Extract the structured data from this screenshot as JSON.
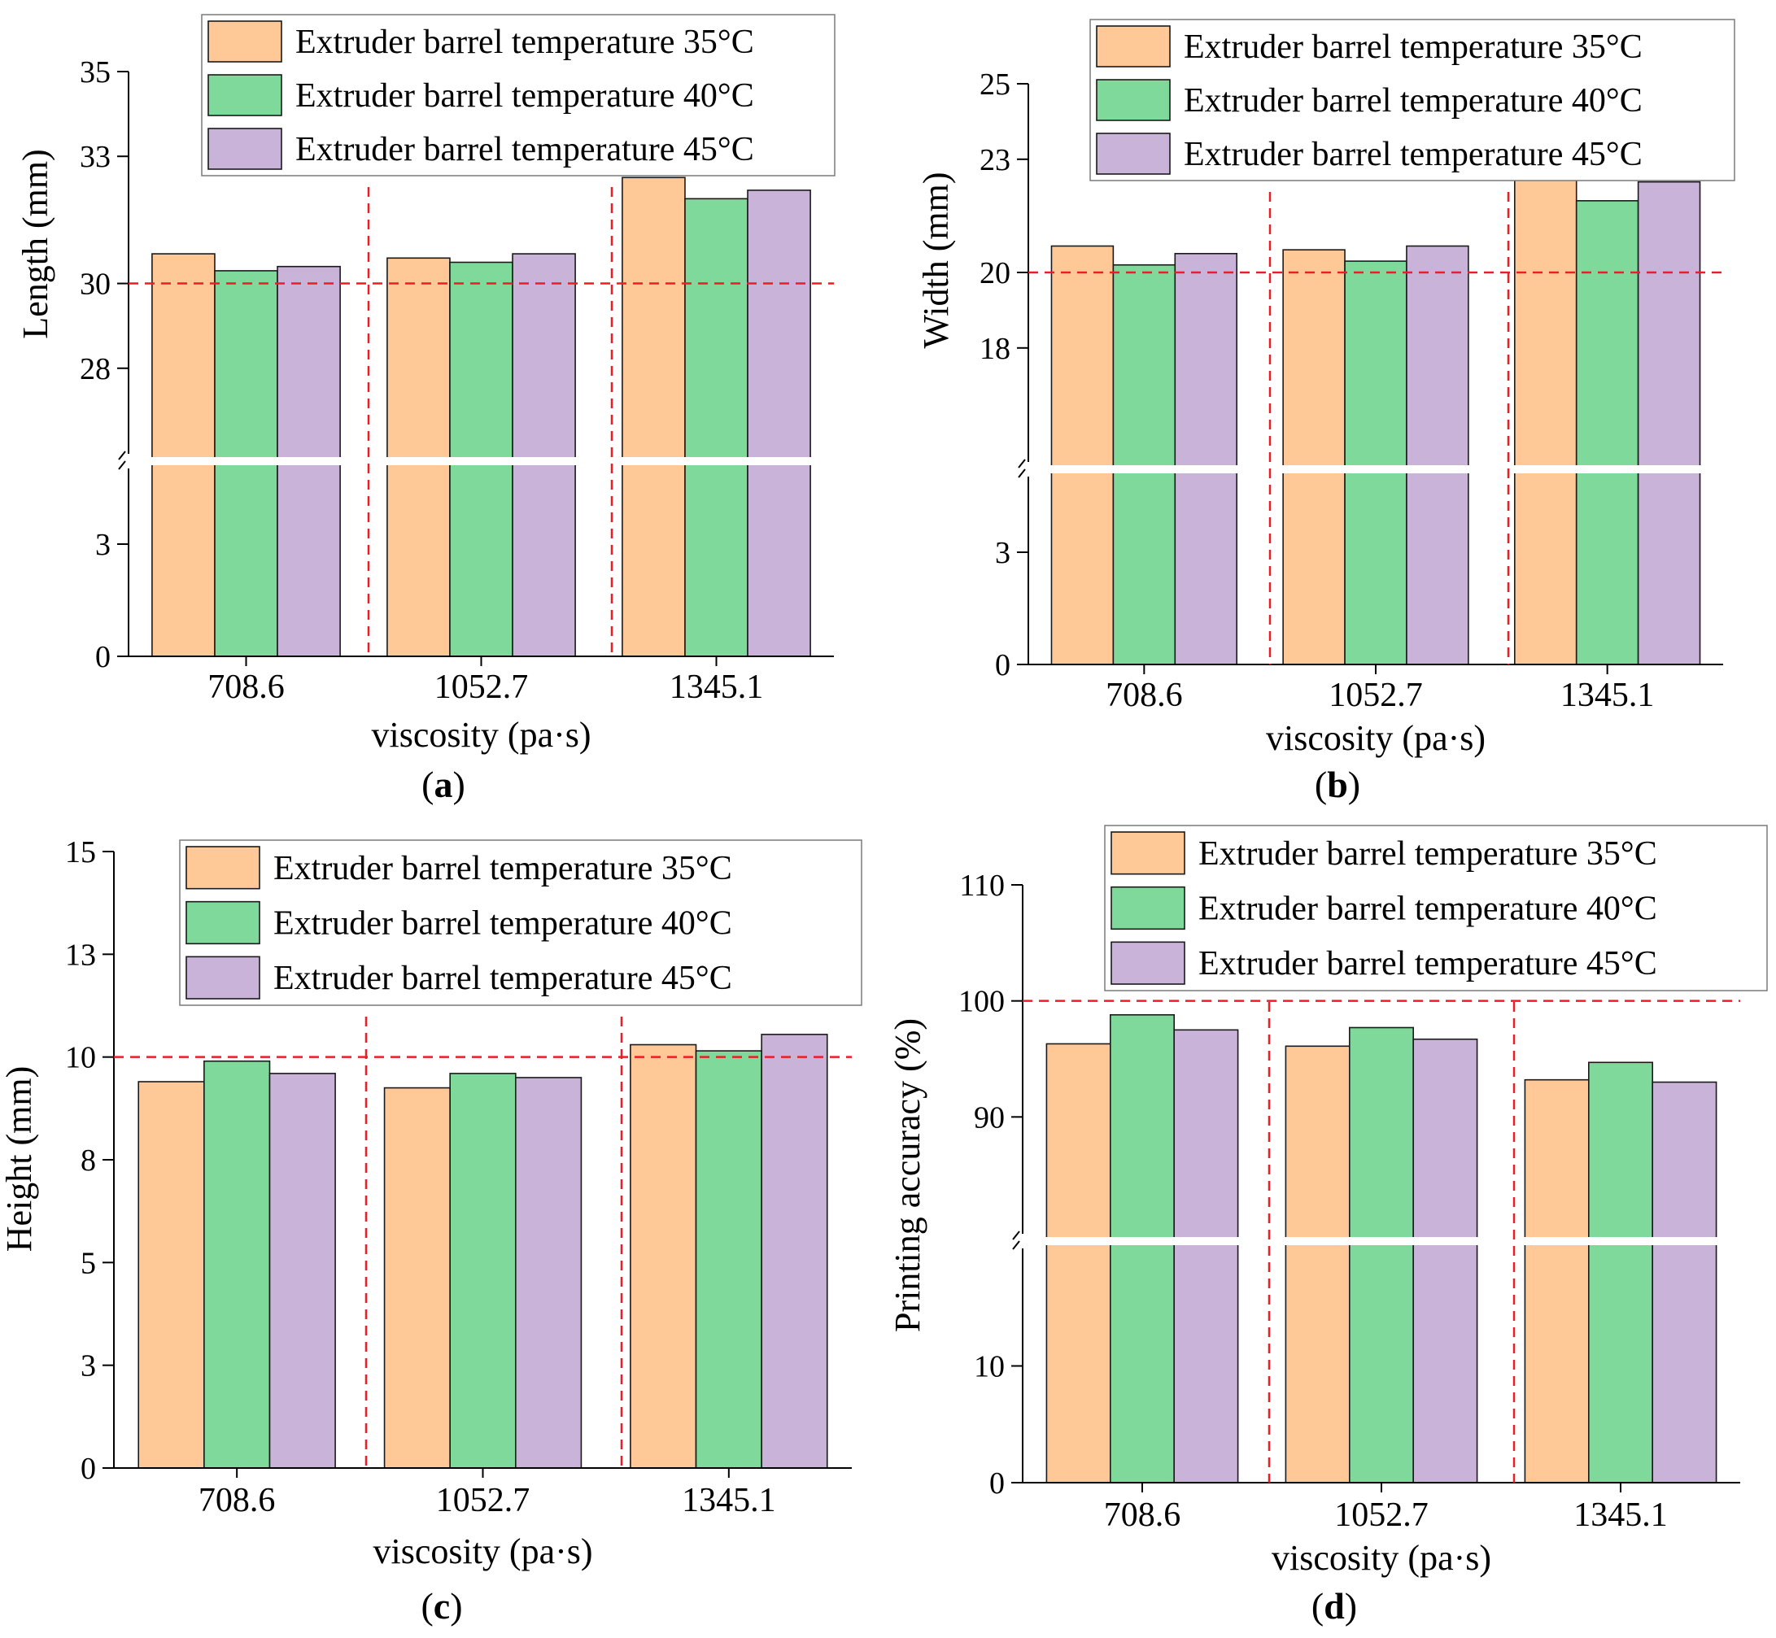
{
  "figure": {
    "colors": {
      "s35": "#FFC896",
      "s40": "#7ED99B",
      "s45": "#C9B3D9",
      "reference": "#EE1C24",
      "bar_border": "#1a1a1a"
    },
    "series_names": [
      "Extruder barrel temperature 35°C",
      "Extruder barrel temperature 40°C",
      "Extruder barrel temperature 45°C"
    ],
    "categories": [
      "708.6",
      "1052.7",
      "1345.1"
    ]
  },
  "chart_data": [
    {
      "id": "a",
      "type": "bar",
      "panel_label": "a",
      "xlabel": "viscosity (pa·s)",
      "ylabel": "Length (mm)",
      "categories": [
        "708.6",
        "1052.7",
        "1345.1"
      ],
      "series": [
        {
          "name": "Extruder barrel temperature 35°C",
          "values": [
            30.7,
            30.6,
            32.5
          ]
        },
        {
          "name": "Extruder barrel temperature 40°C",
          "values": [
            30.3,
            30.5,
            32.0
          ]
        },
        {
          "name": "Extruder barrel temperature 45°C",
          "values": [
            30.4,
            30.7,
            32.2
          ]
        }
      ],
      "reference_value": 30,
      "broken_axis": true,
      "lower_range": [
        0,
        5
      ],
      "upper_range": [
        26,
        35
      ],
      "ticks_lower": [
        {
          "v": 0,
          "label": "0"
        },
        {
          "v": 3,
          "label": "3"
        }
      ],
      "ticks_upper": [
        {
          "v": 28,
          "label": "28"
        },
        {
          "v": 30,
          "label": "30"
        },
        {
          "v": 33,
          "label": "33"
        },
        {
          "v": 35,
          "label": "35"
        }
      ]
    },
    {
      "id": "b",
      "type": "bar",
      "panel_label": "b",
      "xlabel": "viscosity (pa·s)",
      "ylabel": "Width (mm)",
      "categories": [
        "708.6",
        "1052.7",
        "1345.1"
      ],
      "series": [
        {
          "name": "Extruder barrel temperature 35°C",
          "values": [
            20.7,
            20.6,
            22.9
          ]
        },
        {
          "name": "Extruder barrel temperature 40°C",
          "values": [
            20.2,
            20.3,
            21.9
          ]
        },
        {
          "name": "Extruder barrel temperature 45°C",
          "values": [
            20.5,
            20.7,
            22.4
          ]
        }
      ],
      "reference_value": 20,
      "broken_axis": true,
      "lower_range": [
        0,
        5
      ],
      "upper_range": [
        15,
        25
      ],
      "ticks_lower": [
        {
          "v": 0,
          "label": "0"
        },
        {
          "v": 3,
          "label": "3"
        }
      ],
      "ticks_upper": [
        {
          "v": 18,
          "label": "18"
        },
        {
          "v": 20,
          "label": "20"
        },
        {
          "v": 23,
          "label": "23"
        },
        {
          "v": 25,
          "label": "25"
        }
      ]
    },
    {
      "id": "c",
      "type": "bar",
      "panel_label": "c",
      "xlabel": "viscosity (pa·s)",
      "ylabel": "Height (mm)",
      "categories": [
        "708.6",
        "1052.7",
        "1345.1"
      ],
      "series": [
        {
          "name": "Extruder barrel temperature 35°C",
          "values": [
            9.4,
            9.25,
            10.3
          ]
        },
        {
          "name": "Extruder barrel temperature 40°C",
          "values": [
            9.9,
            9.6,
            10.15
          ]
        },
        {
          "name": "Extruder barrel temperature 45°C",
          "values": [
            9.6,
            9.5,
            10.55
          ]
        }
      ],
      "reference_value": 10,
      "broken_axis": false,
      "ylim": [
        0,
        15
      ],
      "ticks": [
        {
          "v": 0,
          "label": "0"
        },
        {
          "v": 2.5,
          "label": "3"
        },
        {
          "v": 5,
          "label": "5"
        },
        {
          "v": 7.5,
          "label": "8"
        },
        {
          "v": 10,
          "label": "10"
        },
        {
          "v": 12.5,
          "label": "13"
        },
        {
          "v": 15,
          "label": "15"
        }
      ]
    },
    {
      "id": "d",
      "type": "bar",
      "panel_label": "d",
      "xlabel": "viscosity (pa·s)",
      "ylabel": "Printing accuracy (%)",
      "categories": [
        "708.6",
        "1052.7",
        "1345.1"
      ],
      "series": [
        {
          "name": "Extruder barrel temperature 35°C",
          "values": [
            96.3,
            96.1,
            93.2
          ]
        },
        {
          "name": "Extruder barrel temperature 40°C",
          "values": [
            98.8,
            97.7,
            94.7
          ]
        },
        {
          "name": "Extruder barrel temperature 45°C",
          "values": [
            97.5,
            96.7,
            93.0
          ]
        }
      ],
      "reference_value": 100,
      "broken_axis": true,
      "lower_range": [
        0,
        20
      ],
      "upper_range": [
        80,
        110
      ],
      "ticks_lower": [
        {
          "v": 0,
          "label": "0"
        },
        {
          "v": 10,
          "label": "10"
        }
      ],
      "ticks_upper": [
        {
          "v": 90,
          "label": "90"
        },
        {
          "v": 100,
          "label": "100"
        },
        {
          "v": 110,
          "label": "110"
        }
      ]
    }
  ]
}
